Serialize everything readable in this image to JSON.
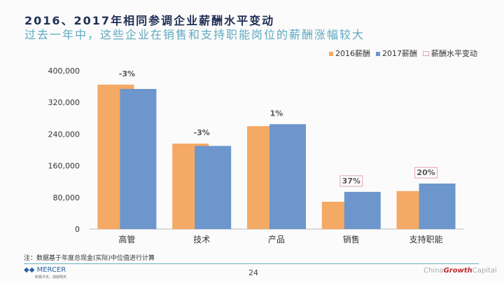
{
  "title": "2016、2017年相同参调企业薪酬水平变动",
  "subtitle": "过去一年中，这些企业在销售和支持职能岗位的薪酬涨幅较大",
  "note": "注：数据基于年度总现金(实际)中位值进行计算",
  "footer": {
    "logo": "MERCER",
    "logo_sub": "积极今天，成就明天",
    "page": "24",
    "brand_a": "China",
    "brand_b": "Growth",
    "brand_c": "Capital"
  },
  "chart_data": {
    "type": "bar",
    "categories": [
      "高管",
      "技术",
      "产品",
      "销售",
      "支持职能"
    ],
    "series": [
      {
        "name": "2016薪酬",
        "color": "#f4a964",
        "values": [
          365000,
          216000,
          260000,
          69000,
          96000
        ]
      },
      {
        "name": "2017薪酬",
        "color": "#6c96cc",
        "values": [
          354000,
          210000,
          265000,
          94000,
          115000
        ]
      }
    ],
    "change_labels": [
      "-3%",
      "-3%",
      "1%",
      "37%",
      "20%"
    ],
    "boxed": [
      false,
      false,
      false,
      true,
      true
    ],
    "legend_extra": "薪酬水平变动",
    "ylim": [
      0,
      400000
    ],
    "yticks": [
      "0",
      "80,000",
      "160,000",
      "240,000",
      "320,000",
      "400,000"
    ],
    "legend": "top-right"
  }
}
